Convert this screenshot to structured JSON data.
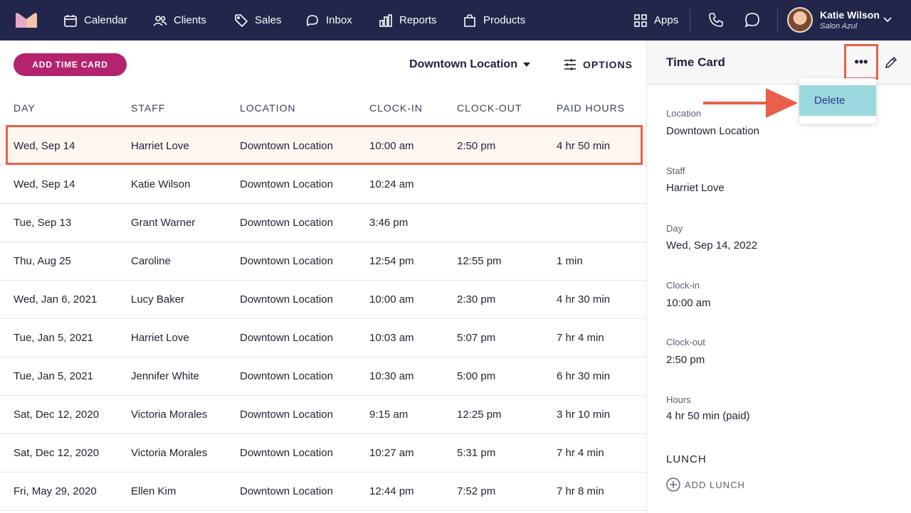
{
  "nav": {
    "items": [
      {
        "label": "Calendar",
        "icon": "calendar-icon"
      },
      {
        "label": "Clients",
        "icon": "users-icon"
      },
      {
        "label": "Sales",
        "icon": "tag-icon"
      },
      {
        "label": "Inbox",
        "icon": "inbox-icon"
      },
      {
        "label": "Reports",
        "icon": "bar-chart-icon"
      },
      {
        "label": "Products",
        "icon": "shopping-bag-icon"
      }
    ],
    "apps_label": "Apps",
    "user_name": "Katie Wilson",
    "user_sub": "Salon Azul"
  },
  "toolbar": {
    "add_label": "ADD TIME CARD",
    "location": "Downtown Location",
    "options_label": "OPTIONS"
  },
  "table": {
    "headers": [
      "DAY",
      "STAFF",
      "LOCATION",
      "CLOCK-IN",
      "CLOCK-OUT",
      "PAID HOURS"
    ],
    "rows": [
      [
        "Wed, Sep 14",
        "Harriet Love",
        "Downtown Location",
        "10:00 am",
        "2:50 pm",
        "4 hr 50 min"
      ],
      [
        "Wed, Sep 14",
        "Katie Wilson",
        "Downtown Location",
        "10:24 am",
        "",
        ""
      ],
      [
        "Tue, Sep 13",
        "Grant Warner",
        "Downtown Location",
        "3:46 pm",
        "",
        ""
      ],
      [
        "Thu, Aug 25",
        "Caroline",
        "Downtown Location",
        "12:54 pm",
        "12:55 pm",
        "1 min"
      ],
      [
        "Wed, Jan 6, 2021",
        "Lucy Baker",
        "Downtown Location",
        "10:00 am",
        "2:30 pm",
        "4 hr 30 min"
      ],
      [
        "Tue, Jan 5, 2021",
        "Harriet Love",
        "Downtown Location",
        "10:03 am",
        "5:07 pm",
        "7 hr 4 min"
      ],
      [
        "Tue, Jan 5, 2021",
        "Jennifer White",
        "Downtown Location",
        "10:30 am",
        "5:00 pm",
        "6 hr 30 min"
      ],
      [
        "Sat, Dec 12, 2020",
        "Victoria Morales",
        "Downtown Location",
        "9:15 am",
        "12:25 pm",
        "3 hr 10 min"
      ],
      [
        "Sat, Dec 12, 2020",
        "Victoria Morales",
        "Downtown Location",
        "10:27 am",
        "5:31 pm",
        "7 hr 4 min"
      ],
      [
        "Fri, May 29, 2020",
        "Ellen Kim",
        "Downtown Location",
        "12:44 pm",
        "7:52 pm",
        "7 hr 8 min"
      ]
    ],
    "selected_row": 0
  },
  "panel": {
    "title": "Time Card",
    "menu_delete": "Delete",
    "fields": [
      {
        "label": "Location",
        "value": "Downtown Location"
      },
      {
        "label": "Staff",
        "value": "Harriet Love"
      },
      {
        "label": "Day",
        "value": "Wed, Sep 14, 2022"
      },
      {
        "label": "Clock-in",
        "value": "10:00 am"
      },
      {
        "label": "Clock-out",
        "value": "2:50 pm"
      },
      {
        "label": "Hours",
        "value": "4 hr 50 min (paid)"
      }
    ],
    "lunch_heading": "LUNCH",
    "add_lunch": "ADD LUNCH"
  },
  "colors": {
    "nav_bg": "#21264a",
    "primary": "#b3236e",
    "annotation": "#e8604a",
    "menu_highlight": "#9bd8de"
  }
}
